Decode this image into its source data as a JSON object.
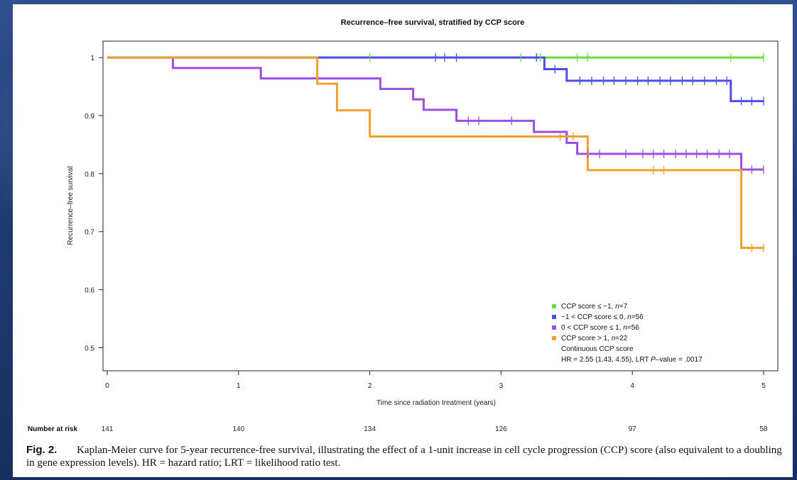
{
  "chart_data": {
    "type": "line",
    "title": "Recurrence–free survival, stratified by CCP score",
    "xlabel": "Time since radiation treatment (years)",
    "ylabel": "Recurrence–free survival",
    "x_ticks": [
      0,
      1,
      2,
      3,
      4,
      5
    ],
    "y_ticks": [
      0.5,
      0.6,
      0.7,
      0.8,
      0.9,
      1.0
    ],
    "y_tick_labels": [
      "0.5",
      "0.6",
      "0.7",
      "0.8",
      "0.9",
      "1"
    ],
    "xlim": [
      0,
      5
    ],
    "ylim": [
      0.47,
      1.01
    ],
    "grid": false,
    "legend_position": "bottom-right",
    "number_at_risk_label": "Number at risk",
    "number_at_risk": [
      "141",
      "140",
      "134",
      "126",
      "97",
      "58"
    ],
    "legend_note": "Continuous CCP score",
    "legend_hr_text": "HR = 2.55 (1.43, 4.55), LRT ",
    "legend_p_label": "P",
    "legend_p_suffix": "–value = .0017",
    "series": [
      {
        "key": "green",
        "name_prefix": "CCP score ≤ −1, ",
        "name_n": "n",
        "name_suffix": "=7",
        "color": "#67dd3b",
        "points": [
          [
            0,
            1.0
          ],
          [
            5,
            1.0
          ]
        ],
        "censor": [
          2.0,
          3.15,
          3.3,
          3.58,
          3.66,
          4.75,
          5.0
        ]
      },
      {
        "key": "blue",
        "name_prefix": "−1 < CCP score ≤ 0, ",
        "name_n": "n",
        "name_suffix": "=56",
        "color": "#4d4ee7",
        "points": [
          [
            0,
            1.0
          ],
          [
            3.33,
            1.0
          ],
          [
            3.33,
            0.98
          ],
          [
            3.5,
            0.98
          ],
          [
            3.5,
            0.96
          ],
          [
            4.75,
            0.96
          ],
          [
            4.75,
            0.925
          ],
          [
            5,
            0.925
          ]
        ],
        "censor": [
          2.5,
          2.57,
          2.66,
          3.27,
          3.41,
          3.6,
          3.69,
          3.78,
          3.86,
          3.95,
          4.04,
          4.12,
          4.21,
          4.29,
          4.38,
          4.46,
          4.55,
          4.64,
          4.72,
          4.83,
          4.91,
          5.0
        ]
      },
      {
        "key": "purple",
        "name_prefix": "0 < CCP score ≤ 1, ",
        "name_n": "n",
        "name_suffix": "=56",
        "color": "#9a4ee4",
        "points": [
          [
            0,
            1.0
          ],
          [
            0.5,
            1.0
          ],
          [
            0.5,
            0.982
          ],
          [
            1.17,
            0.982
          ],
          [
            1.17,
            0.964
          ],
          [
            2.08,
            0.964
          ],
          [
            2.08,
            0.946
          ],
          [
            2.33,
            0.946
          ],
          [
            2.33,
            0.928
          ],
          [
            2.41,
            0.928
          ],
          [
            2.41,
            0.91
          ],
          [
            2.66,
            0.91
          ],
          [
            2.66,
            0.891
          ],
          [
            3.25,
            0.891
          ],
          [
            3.25,
            0.872
          ],
          [
            3.5,
            0.872
          ],
          [
            3.5,
            0.853
          ],
          [
            3.58,
            0.853
          ],
          [
            3.58,
            0.834
          ],
          [
            4.83,
            0.834
          ],
          [
            4.83,
            0.807
          ],
          [
            5,
            0.807
          ]
        ],
        "censor": [
          2.75,
          2.83,
          3.08,
          3.66,
          3.75,
          3.95,
          4.08,
          4.16,
          4.24,
          4.33,
          4.41,
          4.49,
          4.57,
          4.66,
          4.74,
          4.91,
          5.0
        ]
      },
      {
        "key": "orange",
        "name_prefix": "CCP score > 1, ",
        "name_n": "n",
        "name_suffix": "=22",
        "color": "#eea12e",
        "points": [
          [
            0,
            1.0
          ],
          [
            1.6,
            1.0
          ],
          [
            1.6,
            0.955
          ],
          [
            1.75,
            0.955
          ],
          [
            1.75,
            0.909
          ],
          [
            2.0,
            0.909
          ],
          [
            2.0,
            0.864
          ],
          [
            3.66,
            0.864
          ],
          [
            3.66,
            0.806
          ],
          [
            4.83,
            0.806
          ],
          [
            4.83,
            0.672
          ],
          [
            5,
            0.672
          ]
        ],
        "censor": [
          3.45,
          3.55,
          4.16,
          4.24,
          4.91,
          5.0
        ]
      }
    ]
  },
  "caption": {
    "label": "Fig. 2.",
    "text": "Kaplan-Meier curve for 5-year recurrence-free survival, illustrating the effect of a 1-unit increase in cell cycle progression (CCP) score (also equivalent to a doubling in gene expression levels). HR = hazard ratio; LRT = likelihood ratio test."
  }
}
